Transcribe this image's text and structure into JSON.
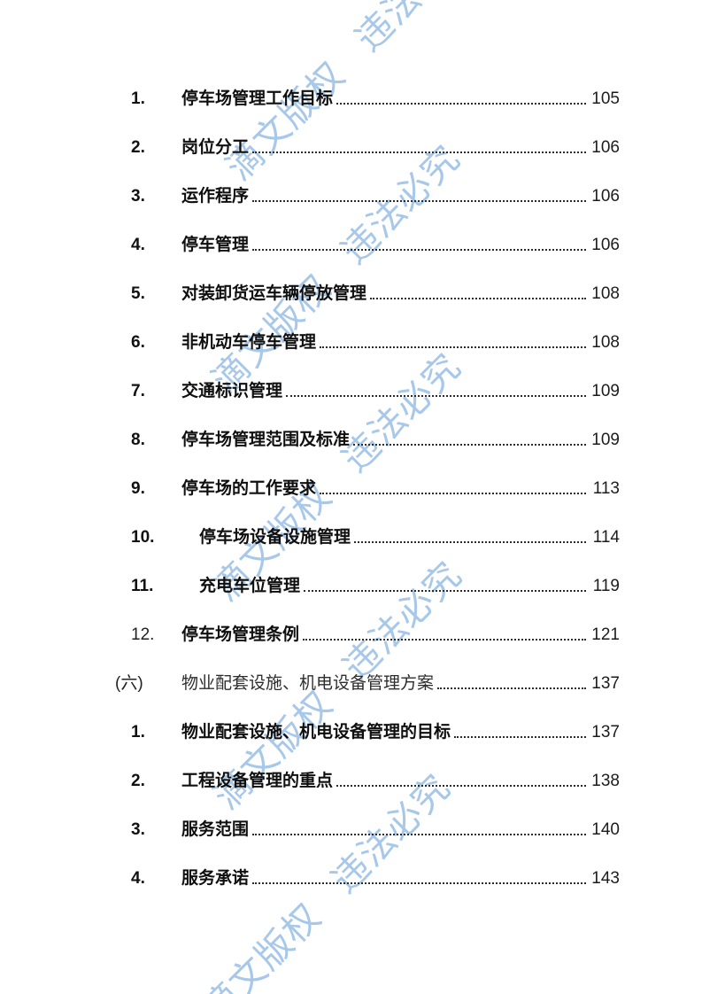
{
  "watermark": {
    "text": "滴文版权 违法必究",
    "color": "#a8c8e9"
  },
  "toc": {
    "entries": [
      {
        "num": "1.",
        "title": "停车场管理工作目标",
        "page": "105",
        "num_bold": true,
        "title_bold": true,
        "indent": "normal"
      },
      {
        "num": "2.",
        "title": "岗位分工",
        "page": "106",
        "num_bold": true,
        "title_bold": true,
        "indent": "normal"
      },
      {
        "num": "3.",
        "title": "运作程序",
        "page": "106",
        "num_bold": true,
        "title_bold": true,
        "indent": "normal"
      },
      {
        "num": "4.",
        "title": "停车管理",
        "page": "106",
        "num_bold": true,
        "title_bold": true,
        "indent": "normal"
      },
      {
        "num": "5.",
        "title": "对装卸货运车辆停放管理",
        "page": "108",
        "num_bold": true,
        "title_bold": true,
        "indent": "normal"
      },
      {
        "num": "6.",
        "title": "非机动车停车管理",
        "page": "108",
        "num_bold": true,
        "title_bold": true,
        "indent": "normal"
      },
      {
        "num": "7.",
        "title": "交通标识管理",
        "page": "109",
        "num_bold": true,
        "title_bold": true,
        "indent": "normal"
      },
      {
        "num": "8.",
        "title": "停车场管理范围及标准",
        "page": "109",
        "num_bold": true,
        "title_bold": true,
        "indent": "normal"
      },
      {
        "num": "9.",
        "title": "停车场的工作要求",
        "page": "113",
        "num_bold": true,
        "title_bold": true,
        "indent": "normal"
      },
      {
        "num": "10.",
        "title": "停车场设备设施管理",
        "page": "114",
        "num_bold": true,
        "title_bold": true,
        "indent": "wide"
      },
      {
        "num": "11.",
        "title": "充电车位管理",
        "page": "119",
        "num_bold": true,
        "title_bold": true,
        "indent": "wide"
      },
      {
        "num": "12.",
        "title": "停车场管理条例",
        "page": "121",
        "num_bold": false,
        "title_bold": true,
        "indent": "normal"
      },
      {
        "num": "(六)",
        "title": "物业配套设施、机电设备管理方案",
        "page": "137",
        "num_bold": false,
        "title_bold": false,
        "indent": "section"
      },
      {
        "num": "1.",
        "title": "物业配套设施、机电设备管理的目标",
        "page": "137",
        "num_bold": true,
        "title_bold": true,
        "indent": "normal"
      },
      {
        "num": "2.",
        "title": "工程设备管理的重点",
        "page": "138",
        "num_bold": true,
        "title_bold": true,
        "indent": "normal"
      },
      {
        "num": "3.",
        "title": "服务范围",
        "page": "140",
        "num_bold": true,
        "title_bold": true,
        "indent": "normal"
      },
      {
        "num": "4.",
        "title": "服务承诺",
        "page": "143",
        "num_bold": true,
        "title_bold": true,
        "indent": "normal"
      }
    ]
  }
}
